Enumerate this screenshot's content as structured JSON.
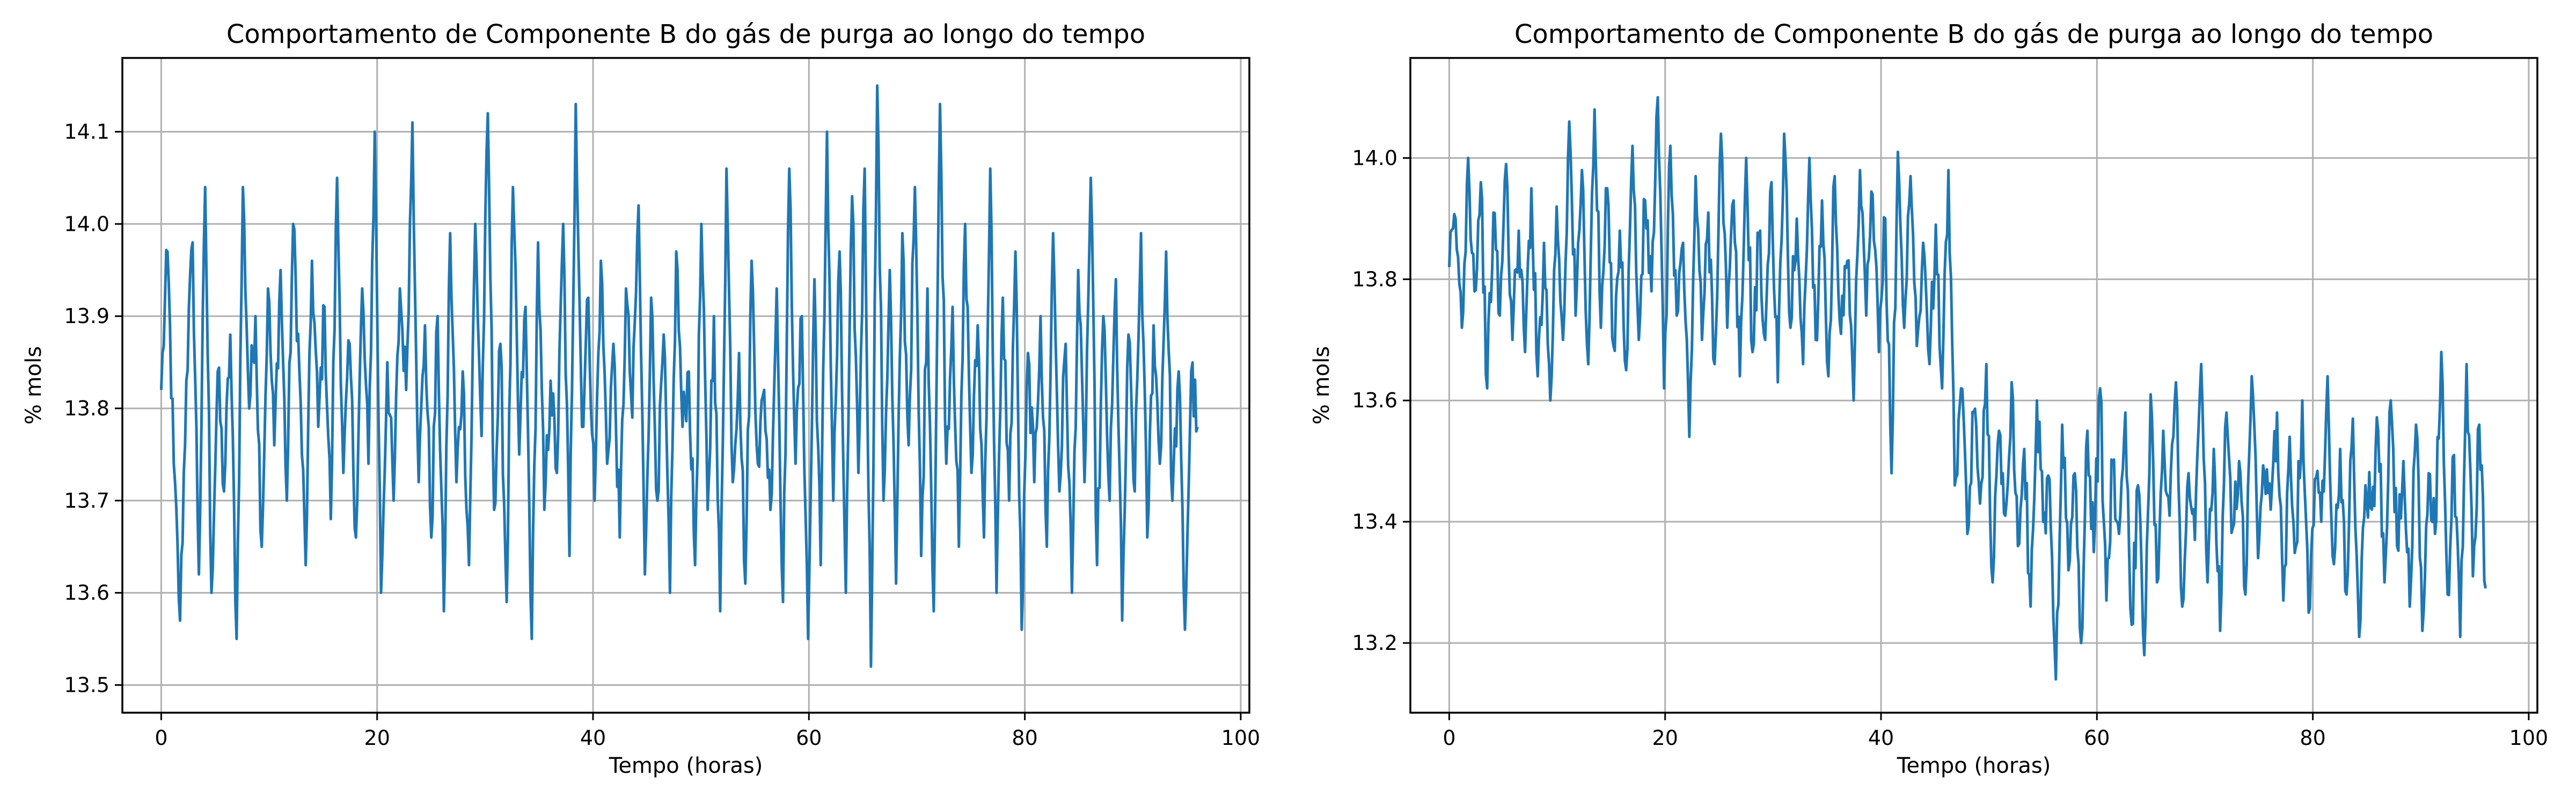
{
  "colors": {
    "series": "#1f77b4",
    "grid": "#b0b0b0"
  },
  "chart_data": [
    {
      "type": "line",
      "title": "Comportamento de Componente B do gás de purga ao longo do tempo",
      "xlabel": "Tempo (horas)",
      "ylabel": "% mols",
      "xlim": [
        -3.6,
        100.8
      ],
      "ylim": [
        13.47,
        14.18
      ],
      "xticks": [
        0,
        20,
        40,
        60,
        80,
        100
      ],
      "xtick_labels": [
        "0",
        "20",
        "40",
        "60",
        "80",
        "100"
      ],
      "yticks": [
        13.5,
        13.6,
        13.7,
        13.8,
        13.9,
        14.0,
        14.1
      ],
      "ytick_labels": [
        "13.5",
        "13.6",
        "13.7",
        "13.8",
        "13.9",
        "14.0",
        "14.1"
      ],
      "grid": true,
      "series": [
        {
          "x_start": 0,
          "x_step": 0.1,
          "x_end": 96,
          "values": [
            13.82,
            13.97,
            13.74,
            13.57,
            13.83,
            13.98,
            13.62,
            14.04,
            13.6,
            13.84,
            13.71,
            13.88,
            13.55,
            14.04,
            13.8,
            13.9,
            13.65,
            13.93,
            13.76,
            13.95,
            13.7,
            14.0,
            13.84,
            13.63,
            13.96,
            13.78,
            13.91,
            13.68,
            14.05,
            13.73,
            13.87,
            13.66,
            13.93,
            13.74,
            14.1,
            13.6,
            13.85,
            13.7,
            13.93,
            13.82,
            14.11,
            13.72,
            13.89,
            13.66,
            13.9,
            13.58,
            13.99,
            13.72,
            13.84,
            13.63,
            14.0,
            13.77,
            14.12,
            13.69,
            13.87,
            13.59,
            14.04,
            13.75,
            13.91,
            13.55,
            13.98,
            13.69,
            13.83,
            13.73,
            14.0,
            13.64,
            14.13,
            13.78,
            13.92,
            13.7,
            13.96,
            13.74,
            13.87,
            13.66,
            13.93,
            13.79,
            14.02,
            13.62,
            13.92,
            13.7,
            13.88,
            13.6,
            13.97,
            13.78,
            13.84,
            13.63,
            14.0,
            13.69,
            13.9,
            13.58,
            14.06,
            13.72,
            13.86,
            13.61,
            13.96,
            13.74,
            13.82,
            13.69,
            13.93,
            13.59,
            14.06,
            13.74,
            13.9,
            13.55,
            13.94,
            13.63,
            14.1,
            13.7,
            13.97,
            13.6,
            14.03,
            13.73,
            14.06,
            13.52,
            14.15,
            13.7,
            13.95,
            13.61,
            13.99,
            13.76,
            14.04,
            13.64,
            13.93,
            13.58,
            14.13,
            13.74,
            13.91,
            13.65,
            14.0,
            13.73,
            13.89,
            13.66,
            14.06,
            13.6,
            13.92,
            13.7,
            13.97,
            13.56,
            13.86,
            13.72,
            13.9,
            13.65,
            13.99,
            13.71,
            13.87,
            13.6,
            13.95,
            13.72,
            14.05,
            13.63,
            13.9,
            13.7,
            13.94,
            13.57,
            13.88,
            13.71,
            13.99,
            13.66,
            13.89,
            13.74,
            13.97,
            13.7,
            13.84,
            13.56,
            13.84,
            13.78
          ]
        }
      ]
    },
    {
      "type": "line",
      "title": "Comportamento de Componente B do gás de purga ao longo do tempo",
      "xlabel": "Tempo (horas)",
      "ylabel": "% mols",
      "xlim": [
        -3.6,
        100.8
      ],
      "ylim": [
        13.085,
        14.165
      ],
      "xticks": [
        0,
        20,
        40,
        60,
        80,
        100
      ],
      "xtick_labels": [
        "0",
        "20",
        "40",
        "60",
        "80",
        "100"
      ],
      "yticks": [
        13.2,
        13.4,
        13.6,
        13.8,
        14.0
      ],
      "ytick_labels": [
        "13.2",
        "13.4",
        "13.6",
        "13.8",
        "14.0"
      ],
      "grid": true,
      "series": [
        {
          "x_start": 0,
          "x_step": 0.1,
          "x_end": 96,
          "values": [
            13.82,
            13.9,
            13.72,
            14.0,
            13.78,
            13.96,
            13.62,
            13.91,
            13.74,
            13.99,
            13.7,
            13.88,
            13.68,
            13.95,
            13.64,
            13.86,
            13.6,
            13.92,
            13.7,
            14.06,
            13.74,
            13.98,
            13.66,
            14.08,
            13.72,
            13.95,
            13.69,
            13.88,
            13.65,
            14.02,
            13.7,
            13.93,
            13.78,
            14.1,
            13.62,
            14.02,
            13.74,
            13.86,
            13.54,
            13.97,
            13.7,
            13.91,
            13.66,
            14.04,
            13.72,
            13.93,
            13.64,
            14.0,
            13.68,
            13.87,
            13.7,
            13.96,
            13.63,
            14.04,
            13.72,
            13.9,
            13.66,
            14.0,
            13.7,
            13.93,
            13.64,
            13.97,
            13.71,
            13.83,
            13.6,
            13.98,
            13.74,
            13.94,
            13.68,
            13.9,
            13.48,
            14.01,
            13.72,
            13.97,
            13.69,
            13.86,
            13.66,
            13.89,
            13.62,
            13.98,
            13.46,
            13.62,
            13.38,
            13.58,
            13.43,
            13.66,
            13.3,
            13.55,
            13.41,
            13.63,
            13.36,
            13.52,
            13.26,
            13.6,
            13.4,
            13.47,
            13.14,
            13.56,
            13.32,
            13.48,
            13.2,
            13.55,
            13.35,
            13.62,
            13.27,
            13.5,
            13.38,
            13.58,
            13.23,
            13.46,
            13.18,
            13.61,
            13.3,
            13.55,
            13.41,
            13.63,
            13.26,
            13.48,
            13.37,
            13.66,
            13.3,
            13.52,
            13.22,
            13.58,
            13.39,
            13.5,
            13.28,
            13.64,
            13.34,
            13.48,
            13.42,
            13.58,
            13.27,
            13.54,
            13.36,
            13.6,
            13.25,
            13.47,
            13.4,
            13.64,
            13.33,
            13.52,
            13.28,
            13.57,
            13.21,
            13.46,
            13.42,
            13.55,
            13.3,
            13.6,
            13.36,
            13.5,
            13.26,
            13.56,
            13.22,
            13.48,
            13.38,
            13.68,
            13.28,
            13.51,
            13.21,
            13.66,
            13.31,
            13.56,
            13.29
          ]
        }
      ]
    }
  ]
}
